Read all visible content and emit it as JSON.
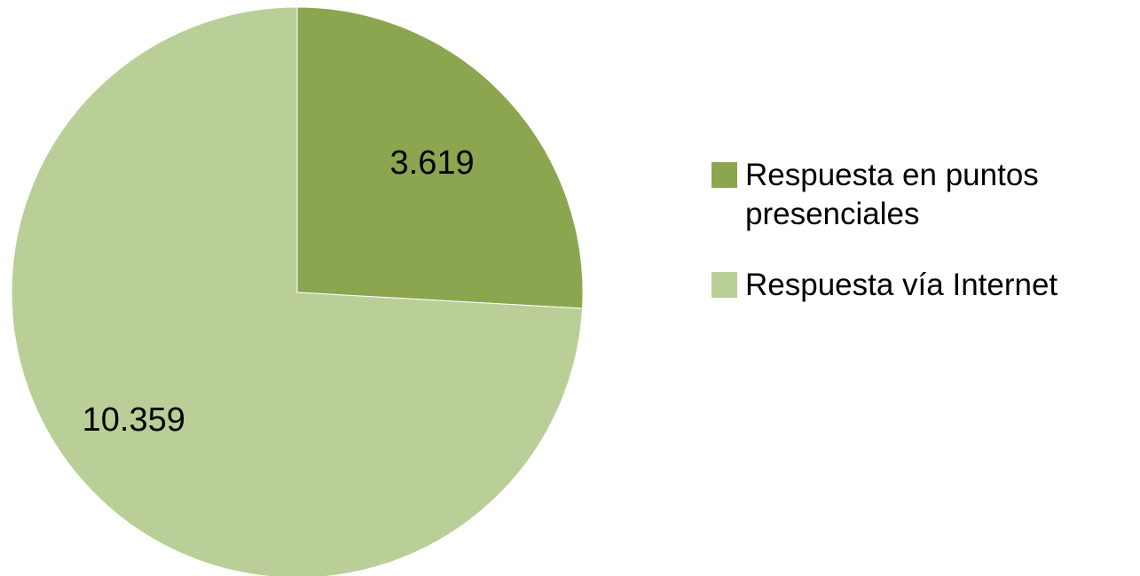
{
  "chart_data": {
    "type": "pie",
    "title": "",
    "categories": [
      "Respuesta en puntos presenciales",
      "Respuesta vía Internet"
    ],
    "values": [
      3619,
      10359
    ],
    "data_labels": [
      "3.619",
      "10.359"
    ],
    "colors": [
      "#8ba64f",
      "#bacf98"
    ],
    "start_angle_deg": 0,
    "direction": "clockwise",
    "legend_position": "right"
  },
  "legend": {
    "items": [
      {
        "label": "Respuesta en puntos presenciales",
        "color": "#8ba64f"
      },
      {
        "label": "Respuesta vía Internet",
        "color": "#bacf98"
      }
    ]
  }
}
